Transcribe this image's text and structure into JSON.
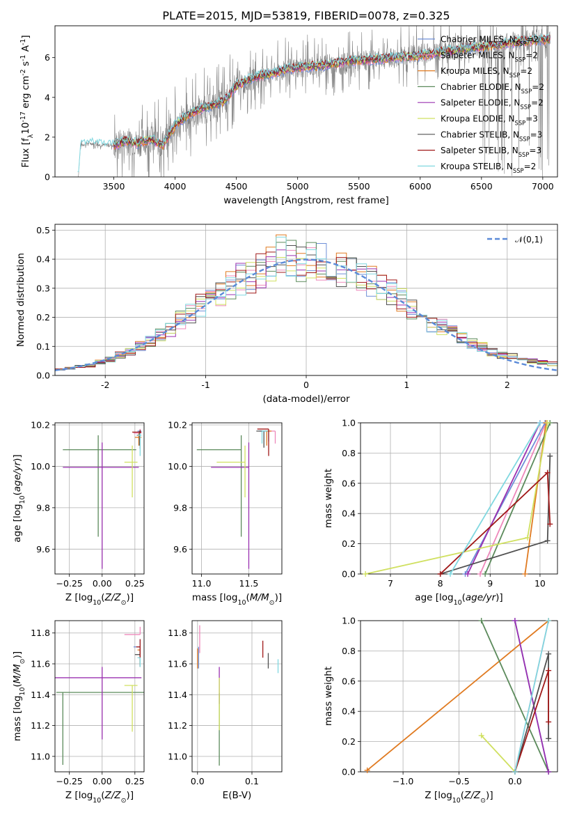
{
  "title": "PLATE=2015, MJD=53819, FIBERID=0078, z=0.325",
  "colors": {
    "grid": "#b0b0b0",
    "observed": "#808080",
    "Chabrier MILES": "#6f8fd8",
    "Salpeter MILES": "#ee88bb",
    "Kroupa MILES": "#e07a20",
    "Chabrier ELODIE": "#5b8a5b",
    "Salpeter ELODIE": "#9a30b0",
    "Kroupa ELODIE": "#d0e060",
    "Chabrier STELIB": "#505050",
    "Salpeter STELIB": "#a01818",
    "Kroupa STELIB": "#80d8e0",
    "normal": "#5b8ad8"
  },
  "models": [
    {
      "name": "Chabrier MILES",
      "nssp": "2"
    },
    {
      "name": "Salpeter MILES",
      "nssp": "2"
    },
    {
      "name": "Kroupa MILES",
      "nssp": "2"
    },
    {
      "name": "Chabrier ELODIE",
      "nssp": "2"
    },
    {
      "name": "Salpeter ELODIE",
      "nssp": "2"
    },
    {
      "name": "Kroupa ELODIE",
      "nssp": "3"
    },
    {
      "name": "Chabrier STELIB",
      "nssp": "3"
    },
    {
      "name": "Salpeter STELIB",
      "nssp": "3"
    },
    {
      "name": "Kroupa STELIB",
      "nssp": "2"
    }
  ],
  "chart_data": [
    {
      "id": "spectrum",
      "type": "line",
      "xlabel": "wavelength [Angstrom, rest frame]",
      "ylabel": "Flux [f$_\\lambda$10$^{-17}$ erg cm$^{-2}$ s$^{-1}$ A$^{-1}$]",
      "xlim": [
        3020,
        7120
      ],
      "ylim": [
        0,
        7.6
      ],
      "xticks": [
        3500,
        4000,
        4500,
        5000,
        5500,
        6000,
        6500,
        7000
      ],
      "yticks": [
        0,
        2,
        4,
        6
      ],
      "grid": false,
      "legend": "right",
      "observed_continuum": {
        "x": [
          3210,
          3230,
          3300,
          3400,
          3500,
          3600,
          3700,
          3800,
          3900,
          4000,
          4100,
          4200,
          4300,
          4400,
          4500,
          4600,
          4700,
          4800,
          4900,
          5000,
          5200,
          5400,
          5600,
          5800,
          6000,
          6200,
          6400,
          6600,
          6800,
          7000
        ],
        "y": [
          0,
          1.6,
          1.7,
          1.6,
          1.6,
          1.8,
          1.7,
          1.9,
          1.7,
          2.5,
          3.0,
          3.3,
          3.5,
          3.8,
          4.5,
          4.8,
          5.0,
          5.2,
          5.4,
          5.5,
          5.6,
          5.7,
          5.9,
          6.0,
          6.2,
          6.4,
          6.5,
          6.6,
          6.8,
          6.9
        ]
      },
      "model_continuum": {
        "x": [
          3500,
          3600,
          3700,
          3800,
          3900,
          4000,
          4100,
          4200,
          4300,
          4400,
          4500,
          4600,
          4700,
          4800,
          4900,
          5000,
          5200,
          5400,
          5600,
          5800,
          6000,
          6200,
          6400,
          6600,
          6800,
          7000
        ],
        "y": [
          1.6,
          1.8,
          1.7,
          1.9,
          1.6,
          2.6,
          3.1,
          3.4,
          3.6,
          3.8,
          4.6,
          4.9,
          5.1,
          5.2,
          5.4,
          5.5,
          5.6,
          5.8,
          5.9,
          6.0,
          6.1,
          6.3,
          6.5,
          6.6,
          6.8,
          6.9
        ]
      }
    },
    {
      "id": "residuals",
      "type": "histogram",
      "xlabel": "(data-model)/error",
      "ylabel": "Normed distribution",
      "xlim": [
        -2.5,
        2.5
      ],
      "ylim": [
        0,
        0.52
      ],
      "xticks": [
        -2,
        -1,
        0,
        1,
        2
      ],
      "yticks": [
        0.0,
        0.1,
        0.2,
        0.3,
        0.4,
        0.5
      ],
      "grid": true,
      "legend": "top-right",
      "curve_label": "$\\mathcal{N}(0,1)$",
      "bins": [
        -2.5,
        -2.4,
        -2.3,
        -2.2,
        -2.1,
        -2.0,
        -1.9,
        -1.8,
        -1.7,
        -1.6,
        -1.5,
        -1.4,
        -1.3,
        -1.2,
        -1.1,
        -1.0,
        -0.9,
        -0.8,
        -0.7,
        -0.6,
        -0.5,
        -0.4,
        -0.3,
        -0.2,
        -0.1,
        0.0,
        0.1,
        0.2,
        0.3,
        0.4,
        0.5,
        0.6,
        0.7,
        0.8,
        0.9,
        1.0,
        1.1,
        1.2,
        1.3,
        1.4,
        1.5,
        1.6,
        1.7,
        1.8,
        1.9,
        2.0,
        2.1,
        2.2,
        2.3,
        2.4,
        2.5
      ],
      "base_density": [
        0.02,
        0.025,
        0.03,
        0.035,
        0.045,
        0.055,
        0.07,
        0.08,
        0.1,
        0.12,
        0.14,
        0.16,
        0.19,
        0.21,
        0.24,
        0.26,
        0.28,
        0.31,
        0.33,
        0.34,
        0.36,
        0.38,
        0.42,
        0.4,
        0.39,
        0.4,
        0.39,
        0.38,
        0.37,
        0.36,
        0.34,
        0.32,
        0.3,
        0.28,
        0.26,
        0.23,
        0.2,
        0.18,
        0.17,
        0.15,
        0.13,
        0.11,
        0.1,
        0.08,
        0.07,
        0.065,
        0.06,
        0.05,
        0.045,
        0.04
      ]
    },
    {
      "id": "age-vs-Z",
      "type": "scatter",
      "xlabel": "Z [log$_{10}$($Z/Z_\\odot$)]",
      "ylabel": "age  [log$_{10}$($age/yr$)]",
      "xlim": [
        -0.36,
        0.32
      ],
      "ylim": [
        9.48,
        10.21
      ],
      "xticks": [
        -0.25,
        0.0,
        0.25
      ],
      "xticklabels": [
        "−0.25",
        "0.00",
        "0.25"
      ],
      "yticks": [
        9.6,
        9.8,
        10.0,
        10.2
      ],
      "grid": true,
      "points": [
        {
          "model": "Chabrier ELODIE",
          "x": -0.03,
          "y": 10.08,
          "xerr": [
            0.27,
            0.29
          ],
          "yerr": [
            0.42,
            0.07
          ]
        },
        {
          "model": "Salpeter ELODIE",
          "x": 0.0,
          "y": 9.995,
          "xerr": [
            0.3,
            0.28
          ],
          "yerr": [
            0.49,
            0.12
          ]
        },
        {
          "model": "Kroupa ELODIE",
          "x": 0.23,
          "y": 10.02,
          "xerr": [
            0.06,
            0.04
          ],
          "yerr": [
            0.17,
            0.08
          ]
        },
        {
          "model": "Chabrier MILES",
          "x": 0.29,
          "y": 10.17,
          "xerr": [
            0.02,
            0.01
          ],
          "yerr": [
            0.02,
            0.01
          ]
        },
        {
          "model": "Salpeter MILES",
          "x": 0.29,
          "y": 10.16,
          "xerr": [
            0.05,
            0.01
          ],
          "yerr": [
            0.05,
            0.02
          ]
        },
        {
          "model": "Kroupa MILES",
          "x": 0.28,
          "y": 10.14,
          "xerr": [
            0.03,
            0.02
          ],
          "yerr": [
            0.04,
            0.02
          ]
        },
        {
          "model": "Chabrier STELIB",
          "x": 0.285,
          "y": 10.15,
          "xerr": [
            0.02,
            0.01
          ],
          "yerr": [
            0.05,
            0.02
          ]
        },
        {
          "model": "Salpeter STELIB",
          "x": 0.29,
          "y": 10.165,
          "xerr": [
            0.06,
            0.01
          ],
          "yerr": [
            0.08,
            0.01
          ]
        },
        {
          "model": "Kroupa STELIB",
          "x": 0.29,
          "y": 10.15,
          "xerr": [
            0.02,
            0.01
          ],
          "yerr": [
            0.1,
            0.01
          ]
        }
      ]
    },
    {
      "id": "age-vs-mass",
      "type": "scatter",
      "xlabel": "mass [log$_{10}$($M/M_\\odot$)]",
      "ylabel": "",
      "xlim": [
        10.9,
        11.85
      ],
      "ylim": [
        9.48,
        10.21
      ],
      "xticks": [
        11.0,
        11.5
      ],
      "xticklabels": [
        "11.0",
        "11.5"
      ],
      "yticks": [
        9.6,
        9.8,
        10.0,
        10.2
      ],
      "grid": true,
      "points": [
        {
          "model": "Chabrier ELODIE",
          "x": 11.42,
          "y": 10.08,
          "xerr": [
            0.47,
            0.0
          ],
          "yerr": [
            0.42,
            0.07
          ]
        },
        {
          "model": "Salpeter ELODIE",
          "x": 11.5,
          "y": 9.995,
          "xerr": [
            0.4,
            0.0
          ],
          "yerr": [
            0.49,
            0.12
          ]
        },
        {
          "model": "Kroupa ELODIE",
          "x": 11.46,
          "y": 10.02,
          "xerr": [
            0.3,
            0.0
          ],
          "yerr": [
            0.17,
            0.08
          ]
        },
        {
          "model": "Chabrier MILES",
          "x": 11.71,
          "y": 10.17,
          "xerr": [
            0.1,
            0.0
          ],
          "yerr": [
            0.05,
            0.0
          ]
        },
        {
          "model": "Salpeter MILES",
          "x": 11.78,
          "y": 10.17,
          "xerr": [
            0.1,
            0.0
          ],
          "yerr": [
            0.06,
            0.0
          ]
        },
        {
          "model": "Kroupa MILES",
          "x": 11.69,
          "y": 10.17,
          "xerr": [
            0.0,
            0.05
          ],
          "yerr": [
            0.07,
            0.0
          ]
        },
        {
          "model": "Chabrier STELIB",
          "x": 11.66,
          "y": 10.17,
          "xerr": [
            0.08,
            0.04
          ],
          "yerr": [
            0.08,
            0.0
          ]
        },
        {
          "model": "Salpeter STELIB",
          "x": 11.71,
          "y": 10.18,
          "xerr": [
            0.12,
            0.0
          ],
          "yerr": [
            0.13,
            0.0
          ]
        },
        {
          "model": "Kroupa STELIB",
          "x": 11.64,
          "y": 10.17,
          "xerr": [
            0.0,
            0.06
          ],
          "yerr": [
            0.06,
            0.0
          ]
        }
      ]
    },
    {
      "id": "mass-weight-vs-age",
      "type": "line",
      "xlabel": "age  [log$_{10}$($age/yr$)]",
      "ylabel": "mass weight",
      "xlim": [
        6.4,
        10.35
      ],
      "ylim": [
        0,
        1
      ],
      "xticks": [
        7,
        8,
        9,
        10
      ],
      "yticks": [
        0.0,
        0.2,
        0.4,
        0.6,
        0.8,
        1.0
      ],
      "grid": true,
      "series": [
        {
          "model": "Chabrier MILES",
          "x": [
            8.5,
            10.1
          ],
          "y": [
            0.0,
            1.0
          ]
        },
        {
          "model": "Salpeter MILES",
          "x": [
            8.8,
            10.12
          ],
          "y": [
            0.0,
            1.0
          ]
        },
        {
          "model": "Kroupa MILES",
          "x": [
            9.7,
            10.12
          ],
          "y": [
            0.0,
            1.0
          ]
        },
        {
          "model": "Chabrier ELODIE",
          "x": [
            8.9,
            10.2
          ],
          "y": [
            0.0,
            1.0
          ]
        },
        {
          "model": "Salpeter ELODIE",
          "x": [
            8.55,
            10.0
          ],
          "y": [
            0.0,
            1.0
          ]
        },
        {
          "model": "Kroupa ELODIE",
          "x": [
            6.5,
            9.75,
            10.15
          ],
          "y": [
            0.0,
            0.24,
            1.0
          ]
        },
        {
          "model": "Chabrier STELIB",
          "x": [
            8.0,
            10.15,
            10.2
          ],
          "y": [
            0.0,
            0.22,
            0.78
          ]
        },
        {
          "model": "Salpeter STELIB",
          "x": [
            8.0,
            10.15,
            10.2
          ],
          "y": [
            0.0,
            0.67,
            0.33
          ]
        },
        {
          "model": "Kroupa STELIB",
          "x": [
            8.2,
            10.0
          ],
          "y": [
            0.0,
            1.0
          ]
        }
      ]
    },
    {
      "id": "mass-vs-Z",
      "type": "scatter",
      "xlabel": "Z [log$_{10}$($Z/Z_\\odot$)]",
      "ylabel": "mass [log$_{10}$($M/M_\\odot$)]",
      "xlim": [
        -0.36,
        0.32
      ],
      "ylim": [
        10.9,
        11.88
      ],
      "xticks": [
        -0.25,
        0.0,
        0.25
      ],
      "xticklabels": [
        "−0.25",
        "0.00",
        "0.25"
      ],
      "yticks": [
        11.0,
        11.2,
        11.4,
        11.6,
        11.8
      ],
      "grid": true,
      "points": [
        {
          "model": "Chabrier ELODIE",
          "x": -0.3,
          "y": 11.415,
          "xerr": [
            0.05,
            0.62
          ],
          "yerr": [
            0.47,
            0.0
          ]
        },
        {
          "model": "Salpeter ELODIE",
          "x": 0.0,
          "y": 11.51,
          "xerr": [
            0.36,
            0.3
          ],
          "yerr": [
            0.4,
            0.07
          ]
        },
        {
          "model": "Kroupa ELODIE",
          "x": 0.23,
          "y": 11.46,
          "xerr": [
            0.06,
            0.04
          ],
          "yerr": [
            0.3,
            0.0
          ]
        },
        {
          "model": "Chabrier MILES",
          "x": 0.29,
          "y": 11.71,
          "xerr": [
            0.05,
            0.0
          ],
          "yerr": [
            0.05,
            0.05
          ]
        },
        {
          "model": "Salpeter MILES",
          "x": 0.29,
          "y": 11.79,
          "xerr": [
            0.12,
            0.0
          ],
          "yerr": [
            0.0,
            0.05
          ]
        },
        {
          "model": "Kroupa MILES",
          "x": 0.29,
          "y": 11.69,
          "xerr": [
            0.02,
            0.0
          ],
          "yerr": [
            0.1,
            0.0
          ]
        },
        {
          "model": "Chabrier STELIB",
          "x": 0.29,
          "y": 11.66,
          "xerr": [
            0.04,
            0.0
          ],
          "yerr": [
            0.08,
            0.04
          ]
        },
        {
          "model": "Salpeter STELIB",
          "x": 0.29,
          "y": 11.71,
          "xerr": [
            0.03,
            0.0
          ],
          "yerr": [
            0.07,
            0.05
          ]
        },
        {
          "model": "Kroupa STELIB",
          "x": 0.29,
          "y": 11.64,
          "xerr": [
            0.02,
            0.0
          ],
          "yerr": [
            0.06,
            0.0
          ]
        }
      ]
    },
    {
      "id": "mass-vs-ebv",
      "type": "scatter",
      "xlabel": "E(B-V)",
      "ylabel": "",
      "xlim": [
        -0.01,
        0.155
      ],
      "ylim": [
        10.9,
        11.88
      ],
      "xticks": [
        0.0,
        0.1
      ],
      "xticklabels": [
        "0.0",
        "0.1"
      ],
      "yticks": [
        11.0,
        11.2,
        11.4,
        11.6,
        11.8
      ],
      "grid": true,
      "points": [
        {
          "model": "Chabrier MILES",
          "x": 0.002,
          "y": 11.66,
          "yerr": [
            0.09,
            0.05
          ]
        },
        {
          "model": "Salpeter MILES",
          "x": 0.004,
          "y": 11.73,
          "yerr": [
            0.06,
            0.12
          ]
        },
        {
          "model": "Kroupa MILES",
          "x": 0.0,
          "y": 11.62,
          "yerr": [
            0.05,
            0.08
          ]
        },
        {
          "model": "Chabrier ELODIE",
          "x": 0.04,
          "y": 11.2,
          "yerr": [
            0.26,
            0.21
          ]
        },
        {
          "model": "Salpeter ELODIE",
          "x": 0.04,
          "y": 11.42,
          "yerr": [
            0.08,
            0.16
          ]
        },
        {
          "model": "Kroupa ELODIE",
          "x": 0.04,
          "y": 11.33,
          "yerr": [
            0.16,
            0.18
          ]
        },
        {
          "model": "Chabrier STELIB",
          "x": 0.13,
          "y": 11.62,
          "yerr": [
            0.05,
            0.05
          ]
        },
        {
          "model": "Salpeter STELIB",
          "x": 0.12,
          "y": 11.7,
          "yerr": [
            0.06,
            0.05
          ]
        },
        {
          "model": "Kroupa STELIB",
          "x": 0.148,
          "y": 11.58,
          "yerr": [
            0.04,
            0.05
          ]
        }
      ]
    },
    {
      "id": "mass-weight-vs-Z",
      "type": "line",
      "xlabel": "Z [log$_{10}$($Z/Z_\\odot$)]",
      "ylabel": "mass weight",
      "xlim": [
        -1.38,
        0.38
      ],
      "ylim": [
        0,
        1
      ],
      "xticks": [
        -1.0,
        -0.5,
        0.0
      ],
      "xticklabels": [
        "−1.0",
        "−0.5",
        "0.0"
      ],
      "yticks": [
        0.0,
        0.2,
        0.4,
        0.6,
        0.8,
        1.0
      ],
      "grid": true,
      "series": [
        {
          "model": "Chabrier MILES",
          "x": [
            0.0,
            0.3
          ],
          "y": [
            1.0,
            0.0
          ]
        },
        {
          "model": "Salpeter MILES",
          "x": [
            0.0,
            0.3
          ],
          "y": [
            0.0,
            1.0
          ]
        },
        {
          "model": "Kroupa MILES",
          "x": [
            -1.32,
            0.3
          ],
          "y": [
            0.01,
            1.0
          ]
        },
        {
          "model": "Chabrier ELODIE",
          "x": [
            -0.3,
            0.3
          ],
          "y": [
            1.0,
            0.0
          ]
        },
        {
          "model": "Salpeter ELODIE",
          "x": [
            0.0,
            0.3
          ],
          "y": [
            1.0,
            0.0
          ]
        },
        {
          "model": "Kroupa ELODIE",
          "x": [
            -0.3,
            0.0
          ],
          "y": [
            0.24,
            0.0
          ]
        },
        {
          "model": "Chabrier STELIB",
          "x": [
            0.0,
            0.3,
            0.3
          ],
          "y": [
            0.0,
            0.78,
            0.22
          ]
        },
        {
          "model": "Salpeter STELIB",
          "x": [
            0.0,
            0.3,
            0.3
          ],
          "y": [
            0.0,
            0.67,
            0.33
          ]
        },
        {
          "model": "Kroupa STELIB",
          "x": [
            0.0,
            0.3
          ],
          "y": [
            0.0,
            1.0
          ]
        }
      ]
    }
  ]
}
